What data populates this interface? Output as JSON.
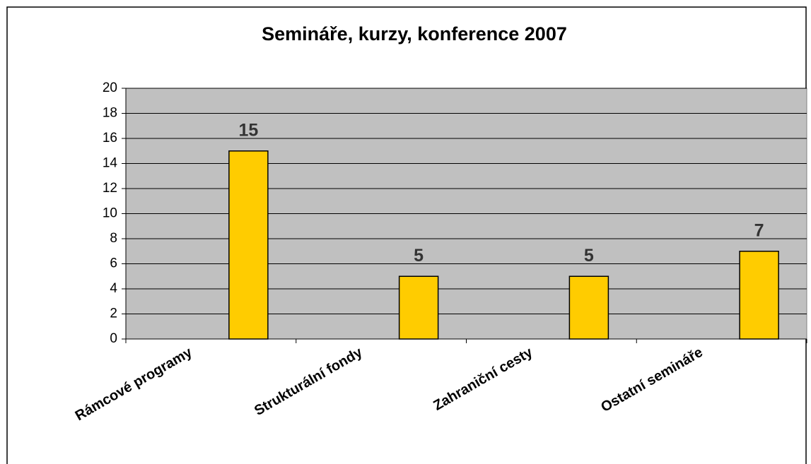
{
  "chart_data": {
    "type": "bar",
    "title": "Semináře, kurzy, konference 2007",
    "categories": [
      "Rámcové programy",
      "Strukturální fondy",
      "Zahraniční cesty",
      "Ostatní semináře"
    ],
    "values": [
      15,
      5,
      5,
      7
    ],
    "color": "#ffcc00",
    "ylim": [
      0,
      20
    ],
    "yticks": [
      0,
      2,
      4,
      6,
      8,
      10,
      12,
      14,
      16,
      18,
      20
    ],
    "grid": true
  }
}
